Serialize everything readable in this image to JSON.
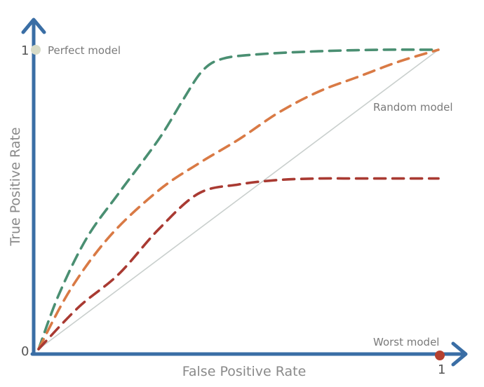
{
  "chart_data": {
    "type": "line",
    "title": "",
    "xlabel": "False Positive Rate",
    "ylabel": "True Positive Rate",
    "xlim": [
      0,
      1
    ],
    "ylim": [
      0,
      1
    ],
    "grid": false,
    "legend": "none",
    "ticks": {
      "origin_label": "0",
      "x_max_label": "1",
      "y_max_label": "1"
    },
    "series": [
      {
        "color": "#4a8f72",
        "style": "dashed",
        "points": [
          [
            0,
            0
          ],
          [
            0.05,
            0.18
          ],
          [
            0.12,
            0.37
          ],
          [
            0.2,
            0.52
          ],
          [
            0.3,
            0.7
          ],
          [
            0.36,
            0.83
          ],
          [
            0.41,
            0.93
          ],
          [
            0.46,
            0.97
          ],
          [
            0.55,
            0.985
          ],
          [
            0.7,
            0.995
          ],
          [
            0.85,
            1.0
          ],
          [
            1.0,
            1.0
          ]
        ]
      },
      {
        "color": "#d97a45",
        "style": "dashed",
        "points": [
          [
            0,
            0
          ],
          [
            0.08,
            0.2
          ],
          [
            0.18,
            0.38
          ],
          [
            0.3,
            0.53
          ],
          [
            0.4,
            0.62
          ],
          [
            0.5,
            0.7
          ],
          [
            0.6,
            0.79
          ],
          [
            0.7,
            0.86
          ],
          [
            0.8,
            0.91
          ],
          [
            0.9,
            0.96
          ],
          [
            1.0,
            1.0
          ]
        ]
      },
      {
        "color": "#a93a32",
        "style": "dashed",
        "points": [
          [
            0,
            0
          ],
          [
            0.1,
            0.14
          ],
          [
            0.2,
            0.25
          ],
          [
            0.3,
            0.4
          ],
          [
            0.4,
            0.52
          ],
          [
            0.5,
            0.55
          ],
          [
            0.6,
            0.565
          ],
          [
            0.7,
            0.57
          ],
          [
            0.8,
            0.57
          ],
          [
            0.9,
            0.57
          ],
          [
            1.0,
            0.57
          ]
        ]
      },
      {
        "color": "#c9cfcd",
        "style": "solid",
        "points": [
          [
            0,
            0
          ],
          [
            1,
            1
          ]
        ]
      }
    ],
    "annotations": [
      {
        "text": "Perfect model",
        "x": 0,
        "y": 1,
        "marker_color": "#d8dcc8"
      },
      {
        "text": "Random model",
        "x": 0.85,
        "y": 0.85
      },
      {
        "text": "Worst model",
        "x": 1,
        "y": 0,
        "marker_color": "#b5402f"
      }
    ],
    "axis_color": "#3a6ea5"
  }
}
